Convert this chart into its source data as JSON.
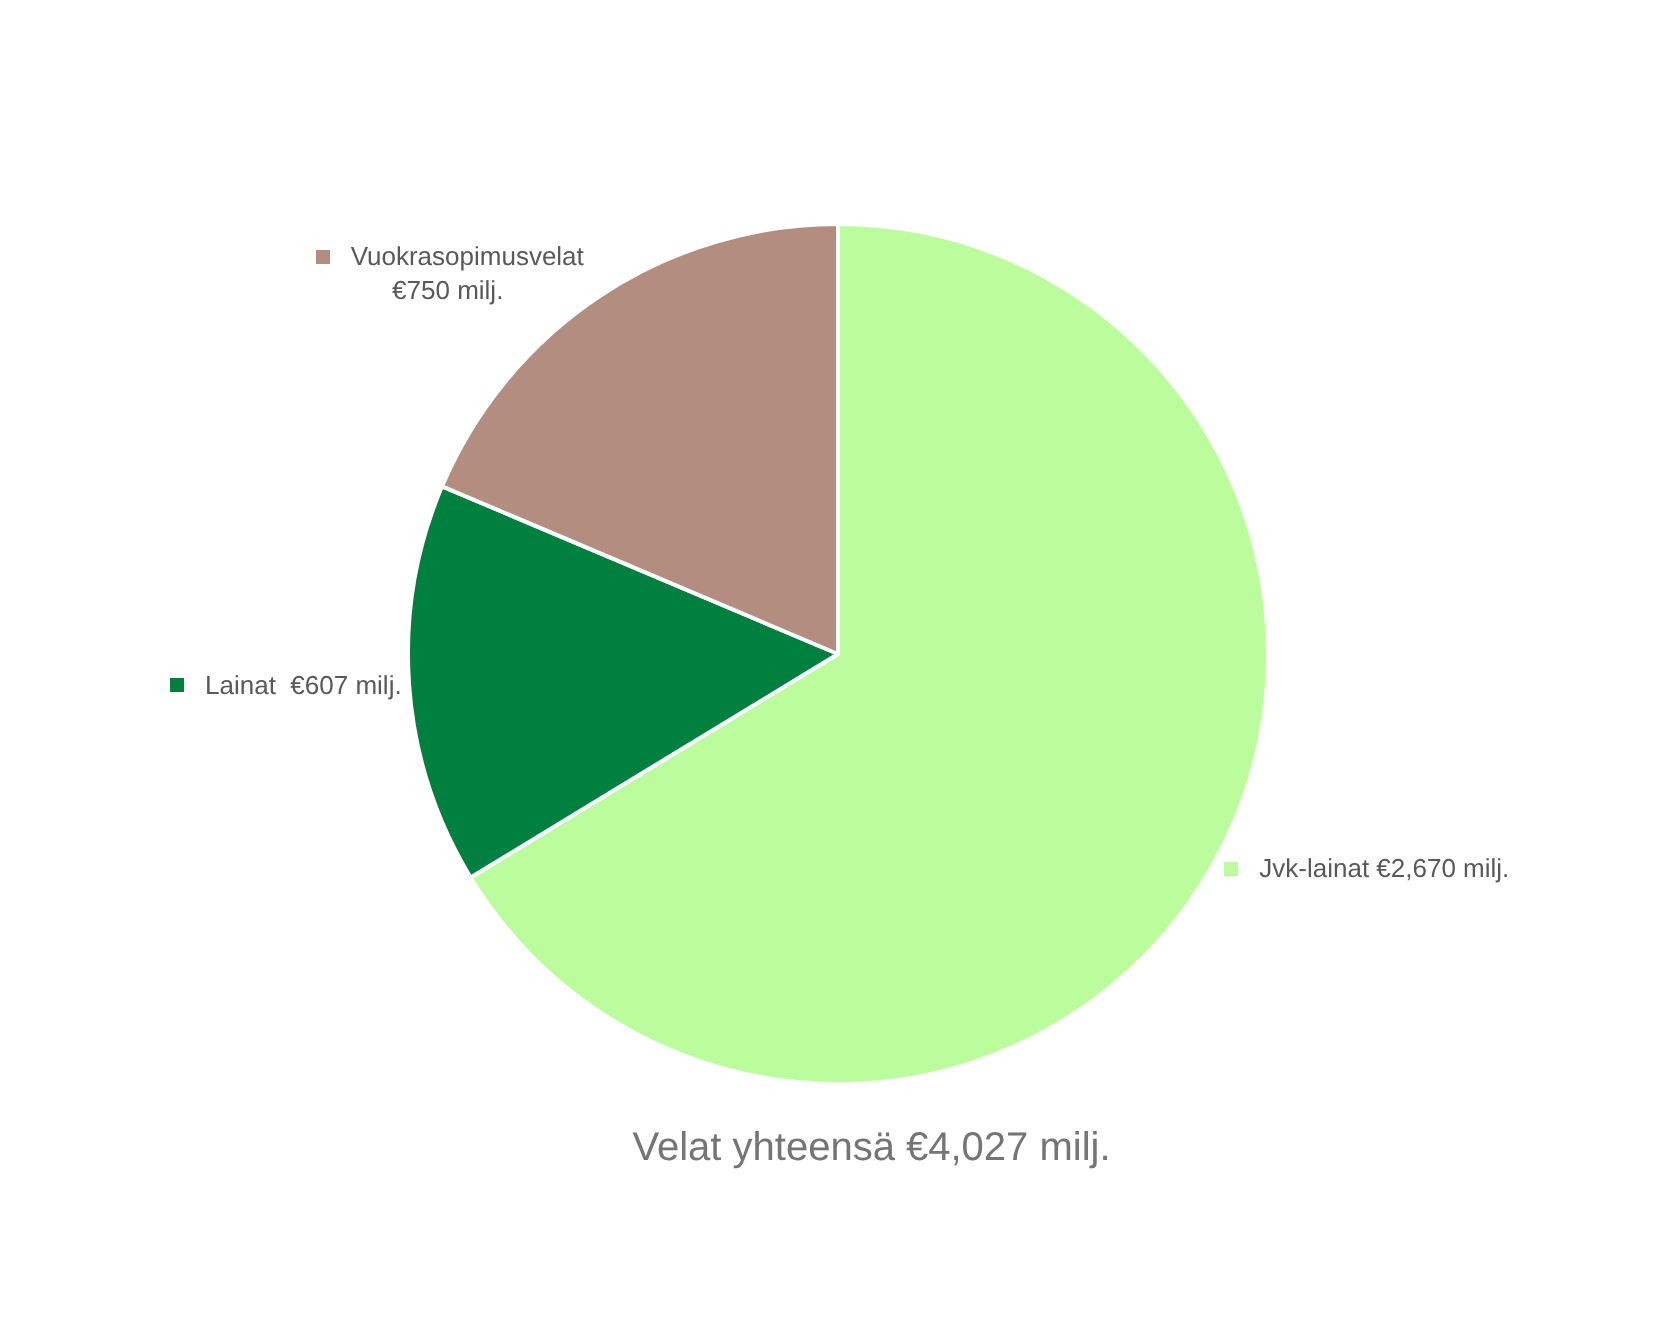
{
  "chart_data": {
    "type": "pie",
    "title": "Velat yhteensä €4,027 milj.",
    "categories": [
      "Jvk-lainat",
      "Lainat ",
      "Vuokrasopimusvelat"
    ],
    "values": [
      2670,
      607,
      750
    ],
    "colors": [
      "#bbfc9c",
      "#00803f",
      "#b38e80"
    ],
    "value_labels": [
      "€2,670 milj.",
      "€607 milj.",
      "€750 milj."
    ],
    "legend": "left"
  }
}
